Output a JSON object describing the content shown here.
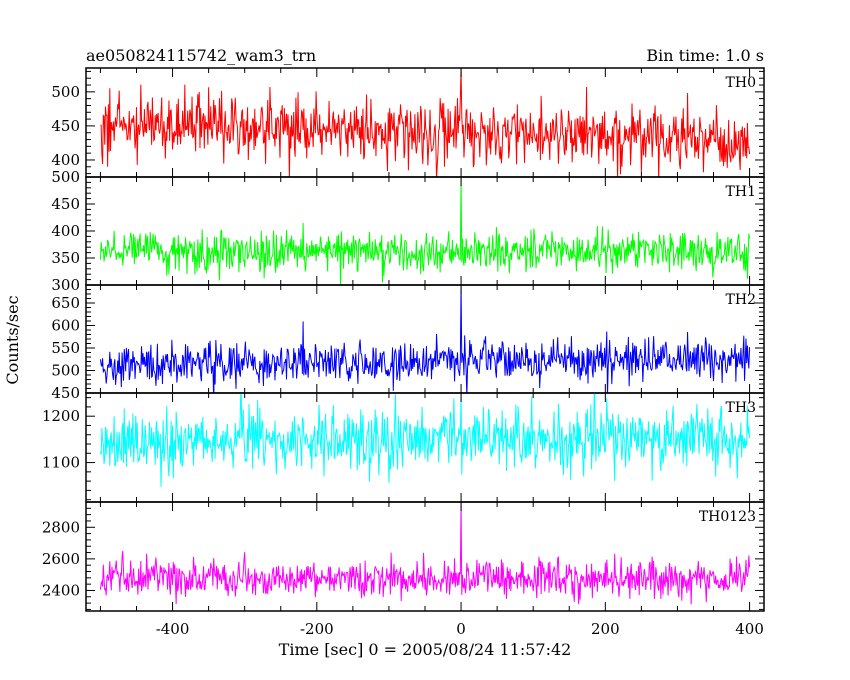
{
  "header": {
    "title": "ae050824115742_wam3_trn",
    "bin_time": "Bin time: 1.0 s"
  },
  "chart_data": {
    "type": "line",
    "xlabel": "Time [sec] 0 = 2005/08/24 11:57:42",
    "ylabel": "Counts/sec",
    "xlim": [
      -520,
      420
    ],
    "x_range": [
      -500,
      400
    ],
    "bin_time_s": 1.0,
    "x_ticks": [
      -400,
      -200,
      0,
      200,
      400
    ],
    "grid": false,
    "panels": [
      {
        "name": "TH0",
        "color": "#ff0000",
        "ylim": [
          375,
          535
        ],
        "y_ticks": [
          400,
          450,
          500
        ],
        "mean_start": 455,
        "mean_end": 428,
        "noise_sigma": 23,
        "spike": {
          "x": 0,
          "y": 535
        }
      },
      {
        "name": "TH1",
        "color": "#00ff00",
        "ylim": [
          300,
          500
        ],
        "y_ticks": [
          300,
          350,
          400,
          450,
          500
        ],
        "mean_start": 362,
        "mean_end": 360,
        "noise_sigma": 19,
        "spike": {
          "x": 0,
          "y": 500
        }
      },
      {
        "name": "TH2",
        "color": "#0000ff",
        "ylim": [
          450,
          690
        ],
        "y_ticks": [
          450,
          500,
          550,
          600,
          650
        ],
        "mean_start": 510,
        "mean_end": 528,
        "noise_sigma": 24,
        "spike": {
          "x": 0,
          "y": 690
        }
      },
      {
        "name": "TH3",
        "color": "#00ffff",
        "ylim": [
          1015,
          1250
        ],
        "y_ticks": [
          1100,
          1200
        ],
        "mean_start": 1148,
        "mean_end": 1152,
        "noise_sigma": 35,
        "spike": {
          "x": 0,
          "y": 1250
        }
      },
      {
        "name": "TH0123",
        "color": "#ff00ff",
        "ylim": [
          2270,
          2960
        ],
        "y_ticks": [
          2400,
          2600,
          2800
        ],
        "mean_start": 2475,
        "mean_end": 2475,
        "noise_sigma": 58,
        "spike": {
          "x": 0,
          "y": 2960
        }
      }
    ]
  }
}
